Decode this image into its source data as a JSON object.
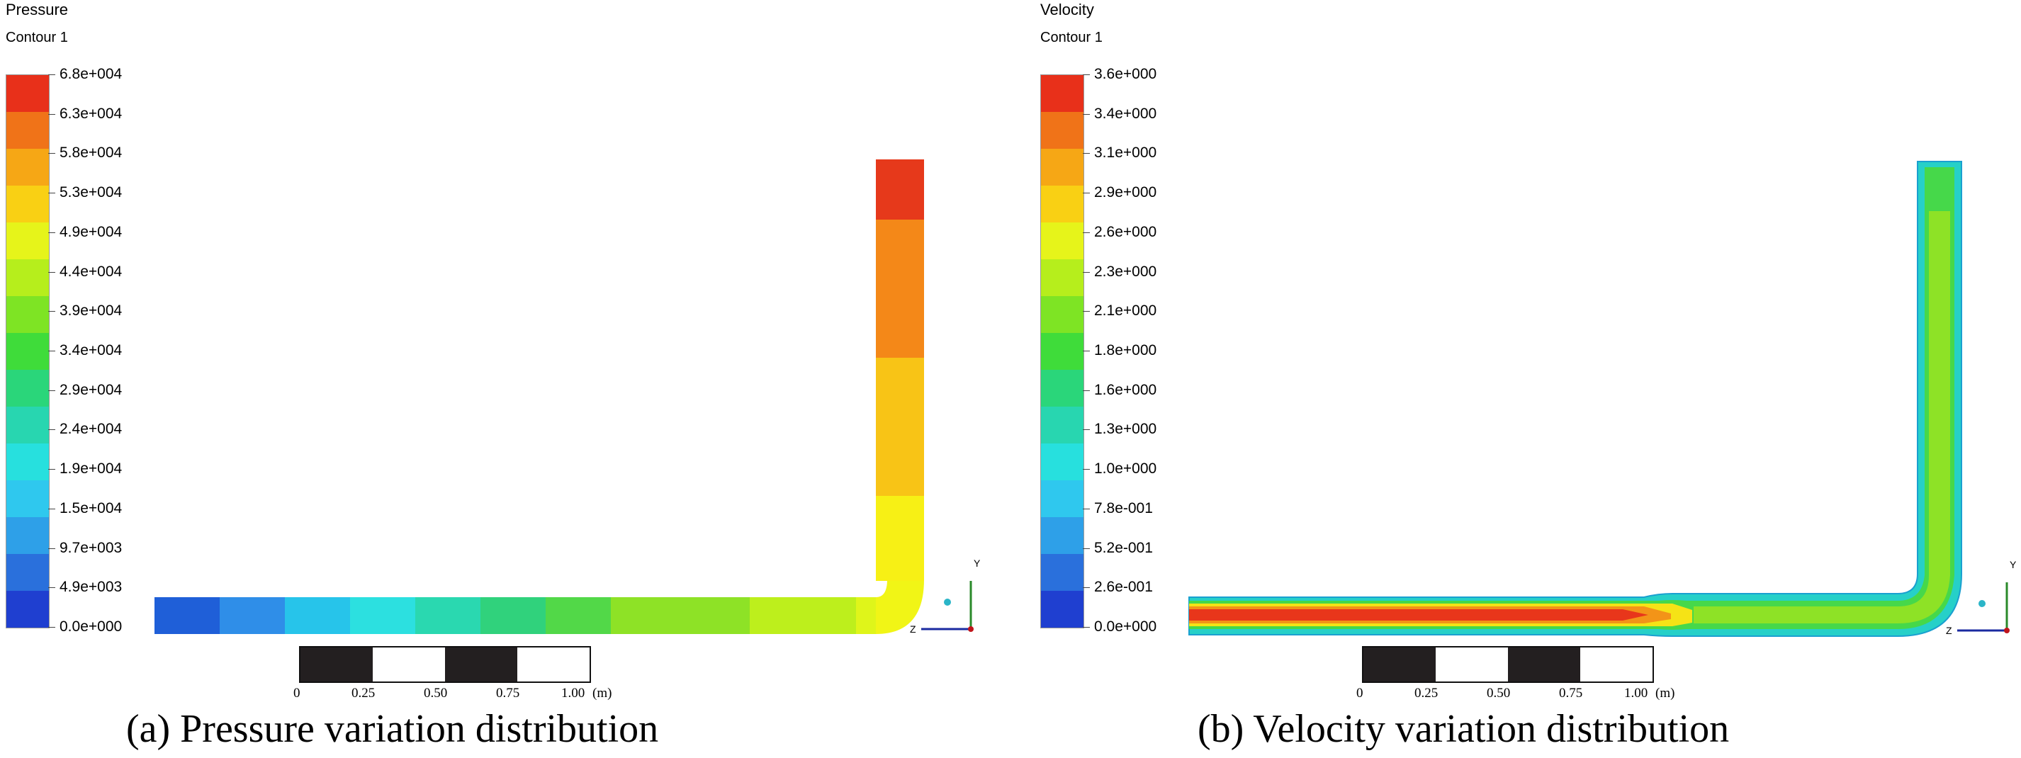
{
  "panels": [
    {
      "id": "a",
      "title": "Pressure",
      "subtitle": "Contour 1",
      "legend": {
        "labels": [
          "6.8e+004",
          "6.3e+004",
          "5.8e+004",
          "5.3e+004",
          "4.9e+004",
          "4.4e+004",
          "3.9e+004",
          "3.4e+004",
          "2.9e+004",
          "2.4e+004",
          "1.9e+004",
          "1.5e+004",
          "9.7e+003",
          "4.9e+003",
          "0.0e+000"
        ]
      },
      "scale": {
        "ticks": [
          "0",
          "0.25",
          "0.50",
          "0.75",
          "1.00"
        ],
        "unit": "(m)"
      },
      "caption": "(a) Pressure variation distribution"
    },
    {
      "id": "b",
      "title": "Velocity",
      "subtitle": "Contour 1",
      "legend": {
        "labels": [
          "3.6e+000",
          "3.4e+000",
          "3.1e+000",
          "2.9e+000",
          "2.6e+000",
          "2.3e+000",
          "2.1e+000",
          "1.8e+000",
          "1.6e+000",
          "1.3e+000",
          "1.0e+000",
          "7.8e-001",
          "5.2e-001",
          "2.6e-001",
          "0.0e+000"
        ]
      },
      "scale": {
        "ticks": [
          "0",
          "0.25",
          "0.50",
          "0.75",
          "1.00"
        ],
        "unit": "(m)"
      },
      "caption": "(b) Velocity variation distribution"
    }
  ],
  "colormap": [
    "#e8301a",
    "#f07318",
    "#f6a715",
    "#f9d014",
    "#e6f41a",
    "#b6ee1c",
    "#7ee424",
    "#3fdc3a",
    "#2ad67a",
    "#28d6b0",
    "#27e0de",
    "#2fc8ee",
    "#2ea0e8",
    "#2a70dc",
    "#1f3fd0"
  ],
  "axis_labels": {
    "y": "Y",
    "z": "Z"
  }
}
